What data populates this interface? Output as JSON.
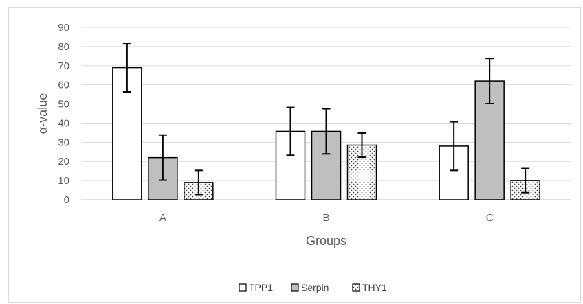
{
  "chart_data": {
    "type": "bar",
    "title": "",
    "xlabel": "Groups",
    "ylabel": "α-value",
    "ylim": [
      0,
      90
    ],
    "yticks": [
      0,
      10,
      20,
      30,
      40,
      50,
      60,
      70,
      80,
      90
    ],
    "grid": true,
    "legend_position": "bottom",
    "categories": [
      "A",
      "B",
      "C"
    ],
    "series": [
      {
        "name": "TPP1",
        "fill": "white",
        "pattern": "none",
        "values": [
          69,
          35.7,
          28
        ],
        "errors": [
          12.7,
          12.5,
          12.7
        ]
      },
      {
        "name": "Serpin",
        "fill": "#bfbfbf",
        "pattern": "none",
        "values": [
          22,
          35.7,
          62
        ],
        "errors": [
          11.8,
          11.8,
          11.8
        ]
      },
      {
        "name": "THY1",
        "fill": "white",
        "pattern": "dots",
        "values": [
          9,
          28.5,
          10
        ],
        "errors": [
          6.3,
          6.3,
          6.3
        ]
      }
    ]
  }
}
